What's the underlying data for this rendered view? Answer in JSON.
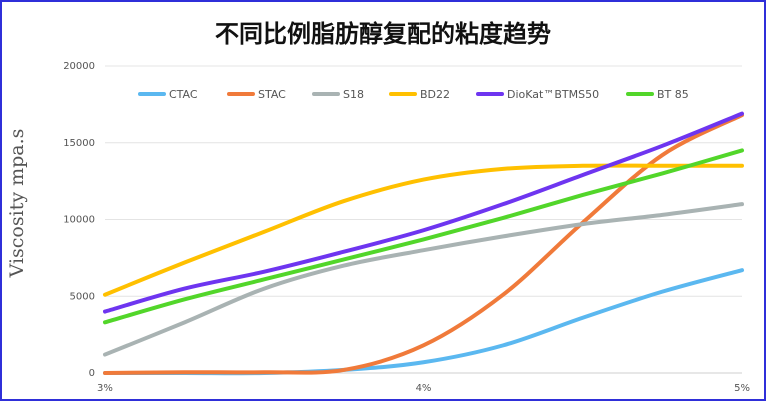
{
  "chart_data": {
    "type": "line",
    "title": "不同比例脂肪醇复配的粘度趋势",
    "ylabel": "Viscosity mpa.s",
    "xlabel": "",
    "categories": [
      "3%",
      "4%",
      "5%"
    ],
    "x": [
      3,
      3.25,
      3.5,
      3.75,
      4,
      4.25,
      4.5,
      4.75,
      5
    ],
    "ylim": [
      0,
      20000
    ],
    "yticks": [
      "0",
      "5000",
      "10000",
      "15000",
      "20000"
    ],
    "grid": true,
    "legend_position": "top",
    "series": [
      {
        "name": "CTAC",
        "color": "#5bb8f0",
        "values": [
          0,
          0,
          0,
          200,
          700,
          1800,
          3600,
          5300,
          6700
        ]
      },
      {
        "name": "STAC",
        "color": "#f07a3a",
        "values": [
          0,
          50,
          50,
          200,
          1800,
          5100,
          9800,
          14200,
          16800
        ]
      },
      {
        "name": "S18",
        "color": "#a9b3b3",
        "values": [
          1200,
          3300,
          5500,
          7000,
          8000,
          8900,
          9700,
          10300,
          11000
        ]
      },
      {
        "name": "BD22",
        "color": "#ffc000",
        "values": [
          5100,
          7200,
          9200,
          11200,
          12600,
          13300,
          13500,
          13500,
          13500
        ]
      },
      {
        "name": "DioKat™BTMS50",
        "color": "#6e35f0",
        "values": [
          4000,
          5500,
          6600,
          7900,
          9300,
          11000,
          12900,
          14800,
          16900
        ]
      },
      {
        "name": "BT 85",
        "color": "#52d62a",
        "values": [
          3300,
          4800,
          6100,
          7400,
          8700,
          10100,
          11600,
          13000,
          14500
        ]
      }
    ]
  }
}
